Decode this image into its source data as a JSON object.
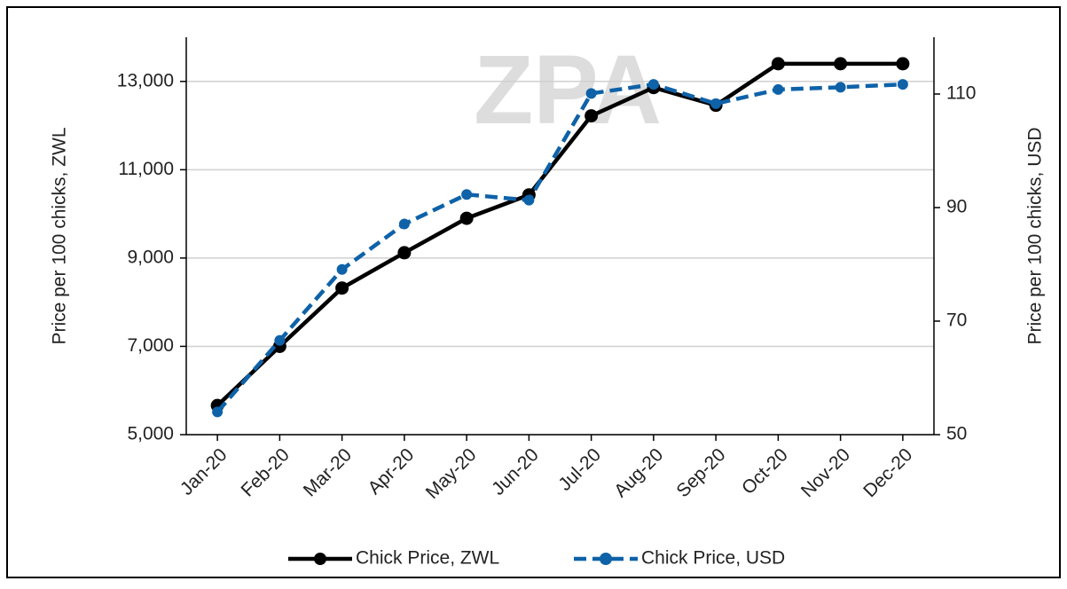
{
  "chart_data": {
    "type": "line",
    "watermark": "ZPA",
    "y_label": "Price per 100 chicks, ZWL",
    "y2_label": "Price per 100 chicks, USD",
    "categories": [
      "Jan-20",
      "Feb-20",
      "Mar-20",
      "Apr-20",
      "May-20",
      "Jun-20",
      "Jul-20",
      "Aug-20",
      "Sep-20",
      "Oct-20",
      "Nov-20",
      "Dec-20"
    ],
    "series": [
      {
        "name": "Chick Price, ZWL",
        "color": "#000000",
        "dashed": false,
        "values": [
          5660,
          7000,
          8320,
          9120,
          9900,
          10430,
          12220,
          12860,
          12460,
          13400,
          13400,
          13400
        ]
      },
      {
        "name": "Chick Price, USD",
        "color": "#0e62a8",
        "dashed": true,
        "axis": "y2",
        "values": [
          54,
          66.6,
          79.1,
          87.1,
          92.3,
          91.3,
          110.1,
          111.7,
          108.3,
          110.8,
          111.2,
          111.7
        ]
      }
    ],
    "ylim": [
      5000,
      14000
    ],
    "yticks": [
      {
        "value": 5000,
        "label": "5,000"
      },
      {
        "value": 7000,
        "label": "7,000"
      },
      {
        "value": 9000,
        "label": "9,000"
      },
      {
        "value": 11000,
        "label": "11,000"
      },
      {
        "value": 13000,
        "label": "13,000"
      }
    ],
    "y2lim": [
      50,
      120
    ],
    "y2ticks": [
      50,
      70,
      90,
      110
    ],
    "grid": true,
    "legend": "bottom"
  }
}
